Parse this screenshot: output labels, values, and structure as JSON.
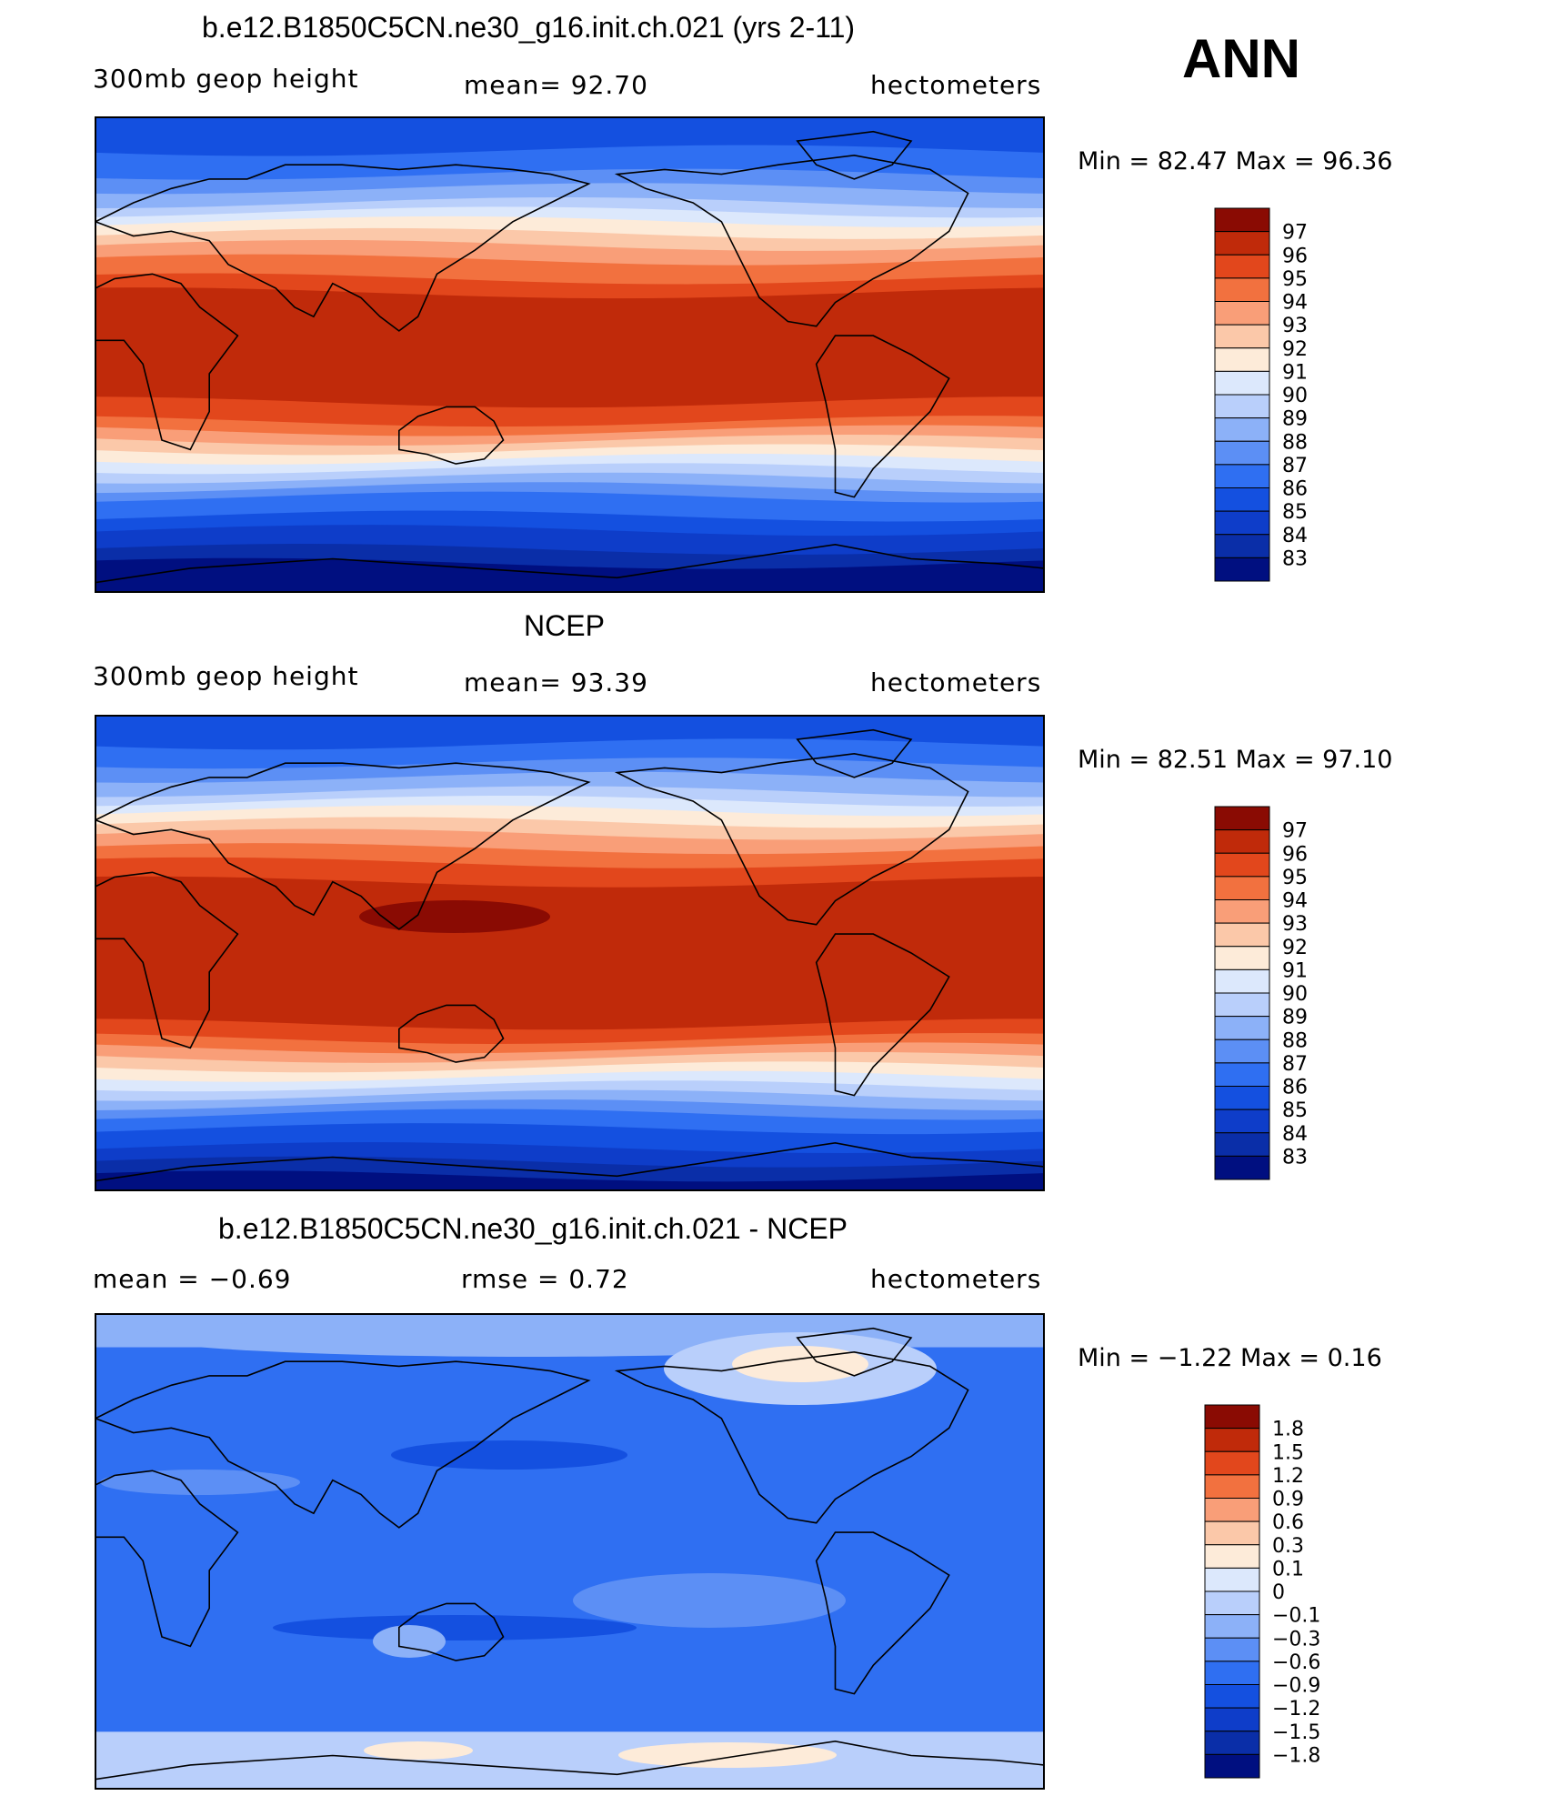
{
  "season": "ANN",
  "colors": {
    "levels14": [
      "#000f80",
      "#0a2ea8",
      "#0e3dc9",
      "#1450e0",
      "#2f6ff2",
      "#5c8ff5",
      "#8cb1f8",
      "#b9cffb",
      "#dce8fc",
      "#fdebd9",
      "#fbc8a9",
      "#f99e78",
      "#f2713f",
      "#e2471c",
      "#c02a0a",
      "#8a0b03"
    ],
    "diff": [
      "#000f80",
      "#0a2ea8",
      "#0e3dc9",
      "#1450e0",
      "#2f6ff2",
      "#5c8ff5",
      "#8cb1f8",
      "#b9cffb",
      "#dce8fc",
      "#fdebd9",
      "#fbc8a9",
      "#f99e78",
      "#f2713f",
      "#e2471c",
      "#c02a0a",
      "#8a0b03"
    ]
  },
  "panels": [
    {
      "title": "b.e12.B1850C5CN.ne30_g16.init.ch.021 (yrs 2-11)",
      "left_label": "300mb  geop  height",
      "mid_label": "mean=   92.70",
      "right_label": "hectometers",
      "minmax": "Min  =    82.47  Max  =    96.36",
      "colorbar_labels": [
        "97",
        "96",
        "95",
        "94",
        "93",
        "92",
        "91",
        "90",
        "89",
        "88",
        "87",
        "86",
        "85",
        "84",
        "83"
      ],
      "kind": "model"
    },
    {
      "title": "NCEP",
      "left_label": "300mb  geop  height",
      "mid_label": "mean=   93.39",
      "right_label": "hectometers",
      "minmax": "Min  =    82.51  Max  =    97.10",
      "colorbar_labels": [
        "97",
        "96",
        "95",
        "94",
        "93",
        "92",
        "91",
        "90",
        "89",
        "88",
        "87",
        "86",
        "85",
        "84",
        "83"
      ],
      "kind": "obs"
    },
    {
      "title": "b.e12.B1850C5CN.ne30_g16.init.ch.021 - NCEP",
      "left_label": "mean  =    −0.69",
      "mid_label": "rmse  =     0.72",
      "right_label": "hectometers",
      "minmax": "Min  =   −1.22  Max  =     0.16",
      "colorbar_labels": [
        "1.8",
        "1.5",
        "1.2",
        "0.9",
        "0.6",
        "0.3",
        "0.1",
        "0",
        "−0.1",
        "−0.3",
        "−0.6",
        "−0.9",
        "−1.2",
        "−1.5",
        "−1.8"
      ],
      "kind": "diff"
    }
  ]
}
